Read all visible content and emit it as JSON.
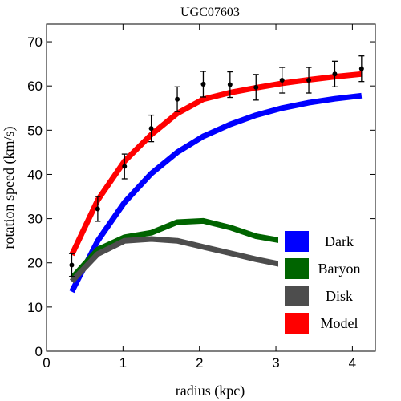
{
  "chart_data": {
    "type": "line",
    "title": "UGC07603",
    "xlabel": "radius (kpc)",
    "ylabel": "rotation speed (km/s)",
    "xlim": [
      0,
      4.3
    ],
    "ylim": [
      0,
      74
    ],
    "xticks": [
      0,
      1,
      2,
      3,
      4
    ],
    "yticks": [
      0,
      10,
      20,
      30,
      40,
      50,
      60,
      70
    ],
    "grid": false,
    "legend_position": "bottom-right",
    "series": [
      {
        "name": "Dark",
        "color": "#0000ff",
        "x": [
          0.33,
          0.67,
          1.02,
          1.37,
          1.71,
          2.05,
          2.4,
          2.74,
          3.08,
          3.43,
          3.77,
          4.12
        ],
        "y": [
          13.5,
          25.0,
          33.7,
          40.2,
          45.0,
          48.6,
          51.3,
          53.4,
          55.0,
          56.2,
          57.1,
          57.8
        ]
      },
      {
        "name": "Baryon",
        "color": "#006400",
        "x": [
          0.33,
          0.67,
          1.02,
          1.37,
          1.71,
          2.05,
          2.4,
          2.74,
          3.08,
          3.43,
          3.77,
          4.12
        ],
        "y": [
          16.5,
          23.0,
          25.8,
          26.8,
          29.2,
          29.5,
          28.0,
          26.0,
          25.0,
          24.2,
          23.8,
          23.5
        ]
      },
      {
        "name": "Disk",
        "color": "#4d4d4d",
        "x": [
          0.33,
          0.67,
          1.02,
          1.37,
          1.71,
          2.05,
          2.4,
          2.74,
          3.08,
          3.43,
          3.77,
          4.12
        ],
        "y": [
          15.8,
          22.0,
          25.0,
          25.4,
          25.0,
          23.6,
          22.2,
          20.8,
          19.6,
          18.6,
          17.8,
          17.2
        ]
      },
      {
        "name": "Model",
        "color": "#ff0000",
        "x": [
          0.33,
          0.67,
          1.02,
          1.37,
          1.71,
          2.05,
          2.4,
          2.74,
          3.08,
          3.43,
          3.77,
          4.12
        ],
        "y": [
          21.8,
          34.2,
          43.0,
          49.0,
          53.8,
          57.0,
          58.5,
          59.6,
          60.6,
          61.4,
          62.1,
          62.7
        ]
      }
    ],
    "observed": {
      "color": "#000000",
      "x": [
        0.33,
        0.67,
        1.02,
        1.37,
        1.71,
        2.05,
        2.4,
        2.74,
        3.08,
        3.43,
        3.77,
        4.12
      ],
      "y": [
        19.5,
        32.2,
        41.8,
        50.4,
        57.0,
        60.4,
        60.3,
        59.7,
        61.3,
        61.3,
        62.7,
        63.9
      ],
      "err": [
        2.6,
        2.8,
        2.8,
        3.0,
        2.8,
        2.9,
        2.9,
        2.9,
        2.9,
        2.9,
        2.9,
        2.9
      ]
    }
  }
}
